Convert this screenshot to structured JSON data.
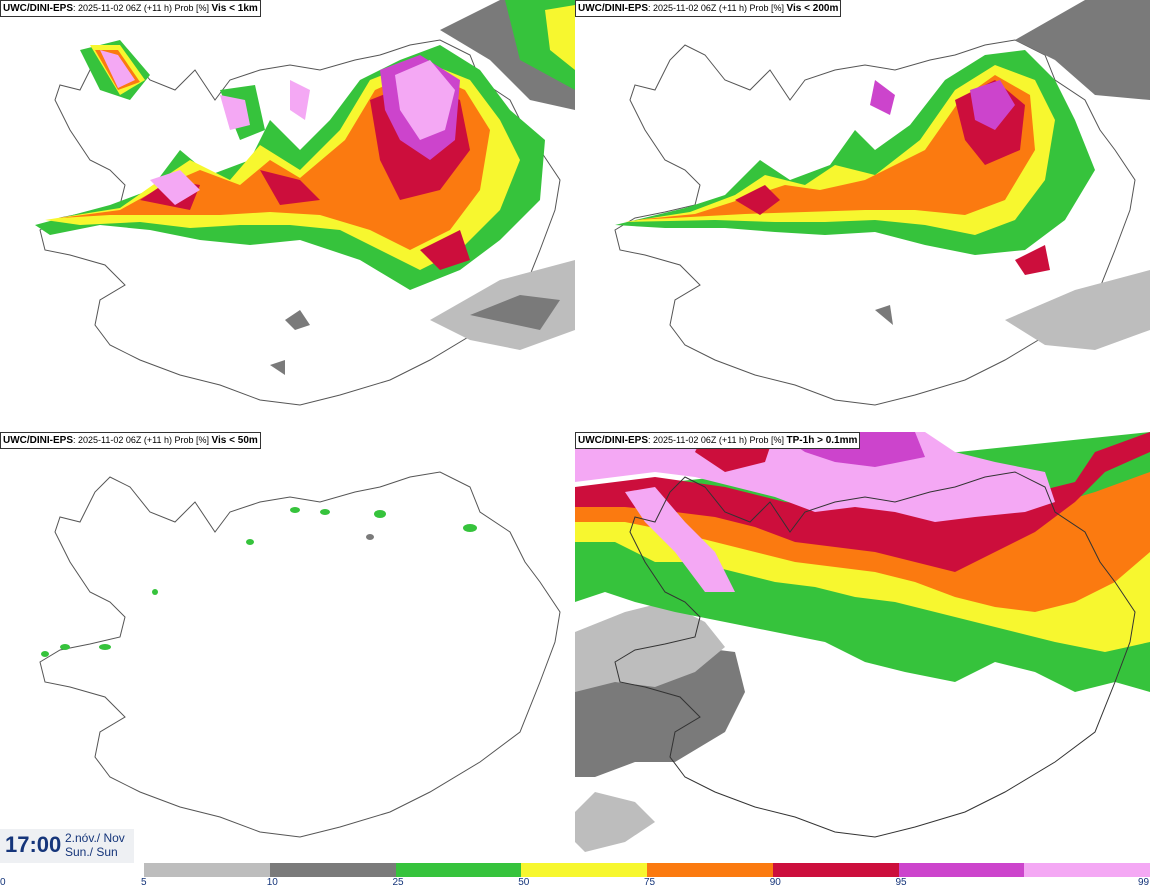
{
  "panels": [
    {
      "source": "UWC/DINI-EPS",
      "run": "2025-11-02 06Z (+11 h) Prob [%]",
      "field": "Vis < 1km"
    },
    {
      "source": "UWC/DINI-EPS",
      "run": "2025-11-02 06Z (+11 h) Prob [%]",
      "field": "Vis < 200m"
    },
    {
      "source": "UWC/DINI-EPS",
      "run": "2025-11-02 06Z (+11 h) Prob [%]",
      "field": "Vis < 50m"
    },
    {
      "source": "UWC/DINI-EPS",
      "run": "2025-11-02 06Z (+11 h) Prob [%]",
      "field": "TP-1h > 0.1mm"
    }
  ],
  "valid_time": {
    "time": "17:00",
    "date_line1": "2.nóv./ Nov",
    "date_line2": "Sun./ Sun"
  },
  "legend": {
    "ticks": [
      "0",
      "5",
      "10",
      "25",
      "50",
      "75",
      "90",
      "95",
      "99"
    ],
    "colors": [
      "#bdbdbd",
      "#7a7a7a",
      "#36c33c",
      "#f7f72f",
      "#fb7a10",
      "#cc0e3c",
      "#cc44cc",
      "#f4a8f4"
    ]
  }
}
